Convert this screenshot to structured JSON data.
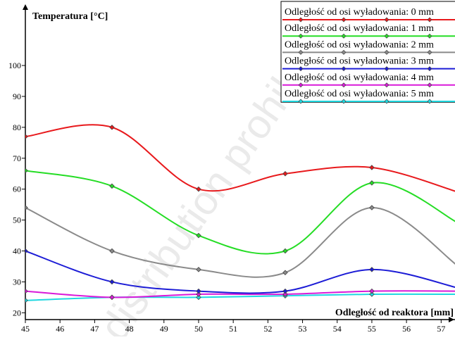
{
  "watermark": "distribution prohibited",
  "chart_data": {
    "type": "line",
    "xlabel": "Odległość od reaktora [mm]",
    "ylabel": "Temperatura  [°C]",
    "xlim": [
      45,
      57.4
    ],
    "ylim": [
      17.8,
      118
    ],
    "x_ticks": [
      45,
      46,
      47,
      48,
      49,
      50,
      51,
      52,
      53,
      54,
      55,
      56,
      57
    ],
    "y_ticks": [
      20,
      30,
      40,
      50,
      60,
      70,
      80,
      90,
      100
    ],
    "grid": false,
    "legend_position": "top-right",
    "x": [
      45,
      47.5,
      50,
      52.5,
      55,
      57.5
    ],
    "series": [
      {
        "name": "Odległość od osi wyładowania: 0 mm",
        "color": "#e8191c",
        "values": [
          77,
          80,
          60,
          65,
          67,
          59
        ]
      },
      {
        "name": "Odległość od osi wyładowania: 1 mm",
        "color": "#25dd25",
        "values": [
          66,
          61,
          45,
          40,
          62,
          49
        ]
      },
      {
        "name": "Odległość od osi wyładowania: 2 mm",
        "color": "#8a8a8a",
        "values": [
          54,
          40,
          34,
          33,
          54,
          35
        ]
      },
      {
        "name": "Odległość od osi wyładowania: 3 mm",
        "color": "#1c1cd6",
        "values": [
          40,
          30,
          27,
          27,
          34,
          28
        ]
      },
      {
        "name": "Odległość od osi wyładowania: 4 mm",
        "color": "#d91ad9",
        "values": [
          27,
          25,
          26,
          26,
          27,
          27
        ]
      },
      {
        "name": "Odległość od osi wyładowania: 5 mm",
        "color": "#1fd8e0",
        "values": [
          24,
          25,
          25,
          25.5,
          26,
          26
        ]
      }
    ]
  }
}
